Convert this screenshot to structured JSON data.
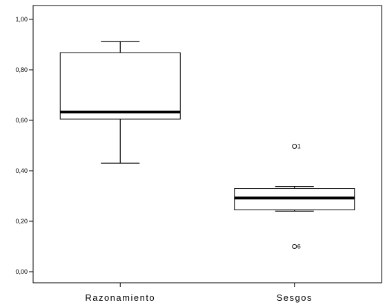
{
  "chart_data": {
    "type": "boxplot",
    "title": "",
    "xlabel": "",
    "ylabel": "",
    "ylim": [
      0,
      1.0
    ],
    "yticks": [
      {
        "value": 0.0,
        "label": "0,00"
      },
      {
        "value": 0.2,
        "label": "0,20"
      },
      {
        "value": 0.4,
        "label": "0,40"
      },
      {
        "value": 0.6,
        "label": "0,60"
      },
      {
        "value": 0.8,
        "label": "0,80"
      },
      {
        "value": 1.0,
        "label": "1,00"
      }
    ],
    "grid": false,
    "boxes": [
      {
        "category": "Razonamiento",
        "min": 0.43,
        "q1": 0.605,
        "median": 0.633,
        "q3": 0.868,
        "max": 0.912,
        "outliers": []
      },
      {
        "category": "Sesgos",
        "min": 0.24,
        "q1": 0.245,
        "median": 0.292,
        "q3": 0.33,
        "max": 0.338,
        "outliers": [
          {
            "value": 0.497,
            "label": "1"
          },
          {
            "value": 0.1,
            "label": "6"
          }
        ]
      }
    ]
  }
}
